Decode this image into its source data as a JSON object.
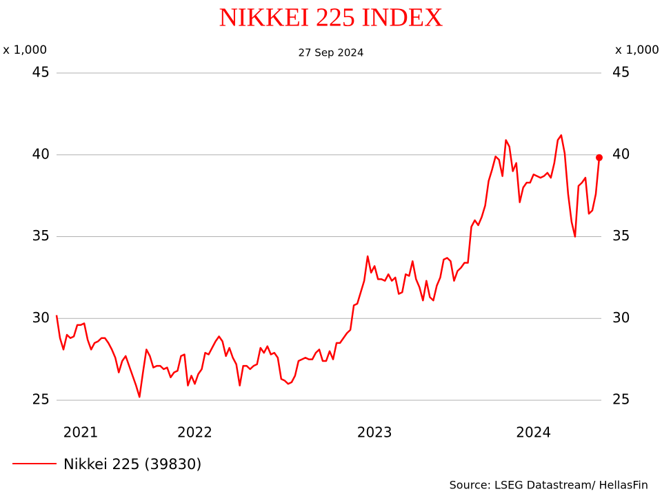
{
  "chart_data": {
    "type": "line",
    "title": "NIKKEI 225 INDEX",
    "subtitle": "27 Sep 2024",
    "y_label": "x 1,000",
    "y2_label": "x 1,000",
    "source": "Source: LSEG Datastream/ HellasFin",
    "ylim": [
      25,
      45
    ],
    "yticks": [
      25,
      30,
      35,
      40,
      45
    ],
    "y2lim": [
      25,
      45
    ],
    "y2ticks": [
      25,
      30,
      35,
      40,
      45
    ],
    "grid": true,
    "legend": "bottom-left",
    "categories": [
      null,
      null,
      null,
      null,
      null,
      null,
      null,
      "2021",
      null,
      null,
      null,
      null,
      null,
      null,
      null,
      null,
      null,
      null,
      null,
      null,
      null,
      null,
      null,
      null,
      null,
      null,
      null,
      null,
      null,
      null,
      null,
      null,
      null,
      null,
      null,
      null,
      null,
      null,
      null,
      null,
      "2022",
      null,
      null,
      null,
      null,
      null,
      null,
      null,
      null,
      null,
      null,
      null,
      null,
      null,
      null,
      null,
      null,
      null,
      null,
      null,
      null,
      null,
      null,
      null,
      null,
      null,
      null,
      null,
      null,
      null,
      null,
      null,
      null,
      null,
      null,
      null,
      null,
      null,
      null,
      null,
      null,
      null,
      null,
      null,
      null,
      null,
      null,
      null,
      null,
      null,
      null,
      null,
      "2023",
      null,
      null,
      null,
      null,
      null,
      null,
      null,
      null,
      null,
      null,
      null,
      null,
      null,
      null,
      null,
      null,
      null,
      null,
      null,
      null,
      null,
      null,
      null,
      null,
      null,
      null,
      null,
      null,
      null,
      null,
      null,
      null,
      null,
      null,
      null,
      null,
      null,
      null,
      null,
      null,
      null,
      null,
      null,
      null,
      null,
      "2024",
      null,
      null,
      null,
      null,
      null,
      null,
      null,
      null,
      null,
      null,
      null,
      null,
      null,
      null,
      null,
      null,
      null,
      null,
      null
    ],
    "series": [
      {
        "name": "Nikkei 225 (39830)",
        "color": "#ff0000",
        "values": [
          30.2,
          28.8,
          28.1,
          29.0,
          28.8,
          28.9,
          29.6,
          29.6,
          29.7,
          28.7,
          28.1,
          28.5,
          28.6,
          28.8,
          28.8,
          28.5,
          28.1,
          27.6,
          26.7,
          27.4,
          27.7,
          27.1,
          26.5,
          25.9,
          25.2,
          26.7,
          28.1,
          27.7,
          27.0,
          27.1,
          27.1,
          26.9,
          27.0,
          26.4,
          26.7,
          26.8,
          27.7,
          27.8,
          25.9,
          26.5,
          26.0,
          26.6,
          26.9,
          27.9,
          27.8,
          28.2,
          28.6,
          28.9,
          28.6,
          27.7,
          28.2,
          27.6,
          27.2,
          25.9,
          27.1,
          27.1,
          26.9,
          27.1,
          27.2,
          28.2,
          27.9,
          28.3,
          27.8,
          27.9,
          27.6,
          26.3,
          26.2,
          26.0,
          26.1,
          26.5,
          27.4,
          27.5,
          27.6,
          27.5,
          27.5,
          27.9,
          28.1,
          27.4,
          27.4,
          28.0,
          27.5,
          28.5,
          28.5,
          28.8,
          29.1,
          29.3,
          30.8,
          30.9,
          31.6,
          32.3,
          33.8,
          32.8,
          33.2,
          32.4,
          32.4,
          32.3,
          32.7,
          32.3,
          32.5,
          31.5,
          31.6,
          32.7,
          32.6,
          33.5,
          32.4,
          31.9,
          31.1,
          32.3,
          31.3,
          31.1,
          32.0,
          32.5,
          33.6,
          33.7,
          33.5,
          32.3,
          32.9,
          33.1,
          33.4,
          33.4,
          35.6,
          36.0,
          35.7,
          36.2,
          36.9,
          38.4,
          39.1,
          39.9,
          39.7,
          38.7,
          40.9,
          40.5,
          39.0,
          39.5,
          37.1,
          38.0,
          38.3,
          38.3,
          38.8,
          38.7,
          38.6,
          38.7,
          38.9,
          38.6,
          39.5,
          40.9,
          41.2,
          40.1,
          37.6,
          35.9,
          35.0,
          38.1,
          38.3,
          38.6,
          36.4,
          36.6,
          37.6,
          39.83
        ]
      }
    ]
  }
}
